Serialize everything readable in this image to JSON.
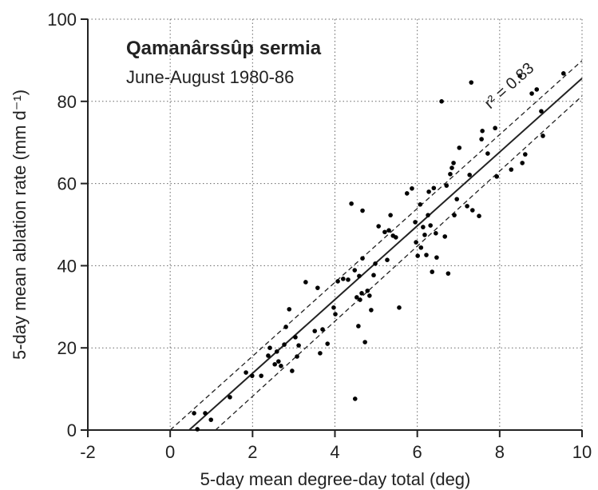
{
  "chart_data": {
    "type": "scatter",
    "title": "Qamanârssûp sermia",
    "subtitle": "June-August 1980-86",
    "x_label": "5-day mean degree-day total (deg)",
    "y_label": "5-day mean ablation rate (mm d⁻¹)",
    "annotation": "r² = 0.83",
    "xlim": [
      -2,
      10
    ],
    "ylim": [
      0,
      100
    ],
    "xticks": [
      -2,
      0,
      2,
      4,
      6,
      8,
      10
    ],
    "yticks": [
      0,
      20,
      40,
      60,
      80,
      100
    ],
    "grid": true,
    "color": "#000000",
    "x": [
      0.58,
      0.66,
      0.85,
      0.99,
      1.45,
      1.84,
      1.99,
      2.21,
      2.38,
      2.42,
      2.54,
      2.59,
      2.63,
      2.69,
      2.77,
      2.81,
      2.89,
      2.96,
      3.04,
      3.08,
      3.12,
      3.29,
      3.51,
      3.58,
      3.64,
      3.7,
      3.82,
      3.97,
      4.01,
      4.07,
      4.2,
      4.32,
      4.4,
      4.48,
      4.53,
      4.57,
      4.59,
      4.61,
      4.65,
      4.67,
      4.67,
      4.73,
      4.79,
      4.84,
      4.88,
      4.94,
      4.98,
      5.06,
      5.21,
      5.27,
      5.31,
      5.35,
      5.41,
      5.48,
      5.56,
      5.75,
      5.87,
      5.95,
      5.97,
      6.01,
      6.07,
      6.09,
      6.14,
      6.18,
      6.22,
      6.26,
      6.28,
      6.32,
      6.36,
      6.4,
      6.45,
      6.47,
      6.59,
      6.67,
      6.71,
      6.75,
      6.8,
      6.84,
      6.88,
      6.9,
      6.96,
      7.02,
      7.21,
      7.27,
      7.31,
      7.34,
      7.5,
      7.56,
      7.58,
      7.71,
      7.89,
      7.93,
      8.28,
      8.49,
      8.55,
      8.62,
      8.78,
      8.9,
      9.01,
      9.05,
      9.55,
      4.49
    ],
    "y": [
      4.1,
      0.2,
      4.1,
      2.5,
      8.0,
      14.0,
      13.2,
      13.2,
      18.1,
      20.0,
      16.0,
      19.1,
      16.7,
      15.6,
      20.8,
      25.1,
      29.4,
      14.4,
      22.6,
      17.9,
      20.6,
      36.0,
      24.1,
      34.6,
      18.7,
      24.5,
      21.0,
      29.8,
      28.2,
      36.2,
      36.8,
      36.6,
      55.1,
      38.9,
      32.3,
      25.3,
      37.5,
      31.7,
      33.3,
      41.8,
      53.4,
      21.4,
      33.9,
      32.7,
      29.2,
      37.7,
      40.5,
      49.6,
      48.2,
      41.4,
      48.6,
      52.3,
      47.3,
      46.9,
      29.8,
      57.6,
      58.8,
      50.6,
      45.7,
      42.4,
      54.9,
      44.4,
      49.4,
      47.5,
      42.6,
      52.3,
      58.0,
      49.8,
      38.5,
      58.9,
      47.9,
      42.0,
      80.0,
      47.1,
      59.5,
      38.1,
      62.3,
      63.8,
      65.0,
      52.3,
      56.2,
      68.7,
      54.5,
      62.1,
      84.6,
      53.5,
      52.1,
      70.8,
      72.8,
      67.3,
      73.5,
      61.7,
      63.4,
      86.2,
      65.0,
      67.1,
      81.9,
      82.9,
      77.6,
      71.6,
      86.8,
      7.6
    ],
    "fit_lines": [
      {
        "style": "solid",
        "x": [
          0.46,
          10
        ],
        "y": [
          0,
          85.6
        ]
      },
      {
        "style": "dashed",
        "x": [
          0,
          10
        ],
        "y": [
          0,
          89.9
        ]
      },
      {
        "style": "dashed",
        "x": [
          1.1,
          10
        ],
        "y": [
          0,
          81.3
        ]
      }
    ]
  }
}
